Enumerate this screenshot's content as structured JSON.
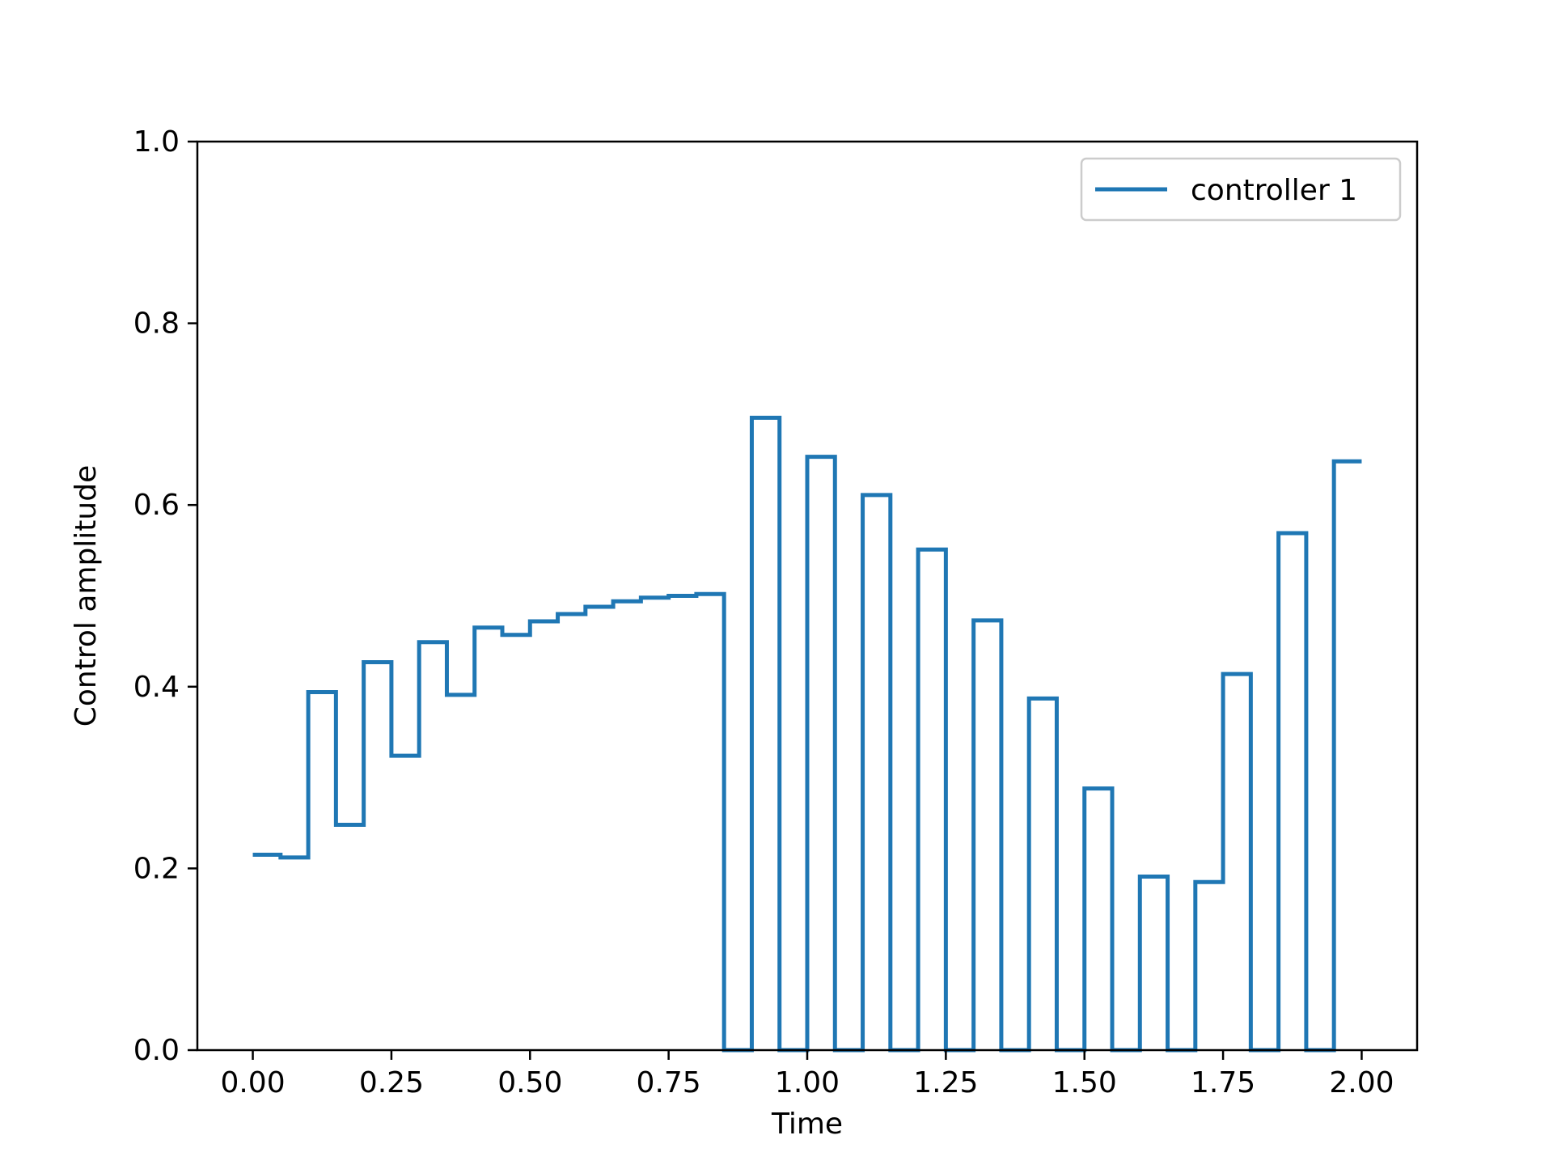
{
  "chart_data": {
    "type": "line",
    "step": "post",
    "xlabel": "Time",
    "ylabel": "Control amplitude",
    "xlim": [
      -0.1,
      2.1
    ],
    "ylim": [
      0.0,
      1.0
    ],
    "xticks": [
      0.0,
      0.25,
      0.5,
      0.75,
      1.0,
      1.25,
      1.5,
      1.75,
      2.0
    ],
    "xtick_labels": [
      "0.00",
      "0.25",
      "0.50",
      "0.75",
      "1.00",
      "1.25",
      "1.50",
      "1.75",
      "2.00"
    ],
    "yticks": [
      0.0,
      0.2,
      0.4,
      0.6,
      0.8,
      1.0
    ],
    "ytick_labels": [
      "0.0",
      "0.2",
      "0.4",
      "0.6",
      "0.8",
      "1.0"
    ],
    "grid": false,
    "legend": {
      "placement": "top-right"
    },
    "colors": {
      "series": "#1f77b4",
      "axis": "#000000",
      "legend_border": "#cccccc"
    },
    "series": [
      {
        "name": "controller 1",
        "x": [
          0.0,
          0.05,
          0.1,
          0.15,
          0.2,
          0.25,
          0.3,
          0.35,
          0.4,
          0.45,
          0.5,
          0.55,
          0.6,
          0.65,
          0.7,
          0.75,
          0.8,
          0.85,
          0.9,
          0.95,
          1.0,
          1.05,
          1.1,
          1.15,
          1.2,
          1.25,
          1.3,
          1.35,
          1.4,
          1.45,
          1.5,
          1.55,
          1.6,
          1.65,
          1.7,
          1.75,
          1.8,
          1.85,
          1.9,
          1.95,
          2.0
        ],
        "y": [
          0.215,
          0.212,
          0.394,
          0.248,
          0.427,
          0.324,
          0.449,
          0.391,
          0.465,
          0.457,
          0.472,
          0.48,
          0.488,
          0.494,
          0.498,
          0.5,
          0.502,
          0.0,
          0.696,
          0.0,
          0.653,
          0.0,
          0.611,
          0.0,
          0.551,
          0.0,
          0.473,
          0.0,
          0.387,
          0.0,
          0.288,
          0.0,
          0.191,
          0.0,
          0.185,
          0.414,
          0.0,
          0.569,
          0.0,
          0.648,
          0.648
        ]
      }
    ]
  }
}
